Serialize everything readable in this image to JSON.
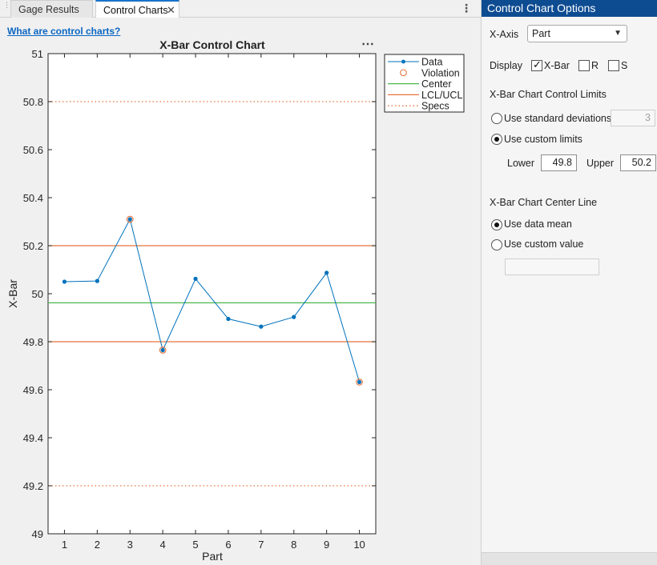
{
  "tabs": {
    "gage_results": "Gage Results",
    "control_charts": "Control Charts",
    "close_glyph": "✕",
    "menu_glyph": "⋮"
  },
  "help_link": "What are control charts?",
  "chart_data": {
    "type": "line",
    "title": "X-Bar Control Chart",
    "xlabel": "Part",
    "ylabel": "X-Bar",
    "x": [
      1,
      2,
      3,
      4,
      5,
      6,
      7,
      8,
      9,
      10
    ],
    "xlim": [
      0.5,
      10.5
    ],
    "ylim": [
      49,
      51
    ],
    "yticks": [
      49,
      49.2,
      49.4,
      49.6,
      49.8,
      50,
      50.2,
      50.4,
      50.6,
      50.8,
      51
    ],
    "ytick_labels": [
      "49",
      "49.2",
      "49.4",
      "49.6",
      "49.8",
      "50",
      "50.2",
      "50.4",
      "50.6",
      "50.8",
      "51"
    ],
    "series": [
      {
        "name": "Data",
        "values": [
          50.05,
          50.053,
          50.31,
          49.765,
          50.062,
          49.895,
          49.863,
          49.903,
          50.087,
          49.632
        ],
        "color": "#0072bd"
      }
    ],
    "violations": [
      3,
      4,
      10
    ],
    "center": 49.962,
    "lcl": 49.8,
    "ucl": 50.2,
    "specs": [
      49.2,
      50.8
    ],
    "legend": {
      "position": "top-right",
      "entries": [
        "Data",
        "Violation",
        "Center",
        "LCL/UCL",
        "Specs"
      ]
    },
    "colors": {
      "data": "#0072bd",
      "violation": "#e8743b",
      "center": "#4bb84b",
      "limits": "#e8743b",
      "specs": "#e8743b"
    },
    "grid": false
  },
  "chart_menu_glyph": "⋯",
  "panel": {
    "title": "Control Chart Options",
    "xaxis_label": "X-Axis",
    "xaxis_value": "Part",
    "xaxis_caret": "▼",
    "display_label": "Display",
    "display_xbar": "X-Bar",
    "display_r": "R",
    "display_s": "S",
    "display_xbar_checked": true,
    "display_r_checked": false,
    "display_s_checked": false,
    "limits_heading": "X-Bar Chart Control Limits",
    "use_std_dev": "Use standard deviations",
    "std_dev_value": "3",
    "use_custom_limits": "Use custom limits",
    "lower_label": "Lower",
    "lower_value": "49.8",
    "upper_label": "Upper",
    "upper_value": "50.2",
    "center_heading": "X-Bar Chart Center Line",
    "use_data_mean": "Use data mean",
    "use_custom_value": "Use custom value",
    "custom_value": ""
  }
}
